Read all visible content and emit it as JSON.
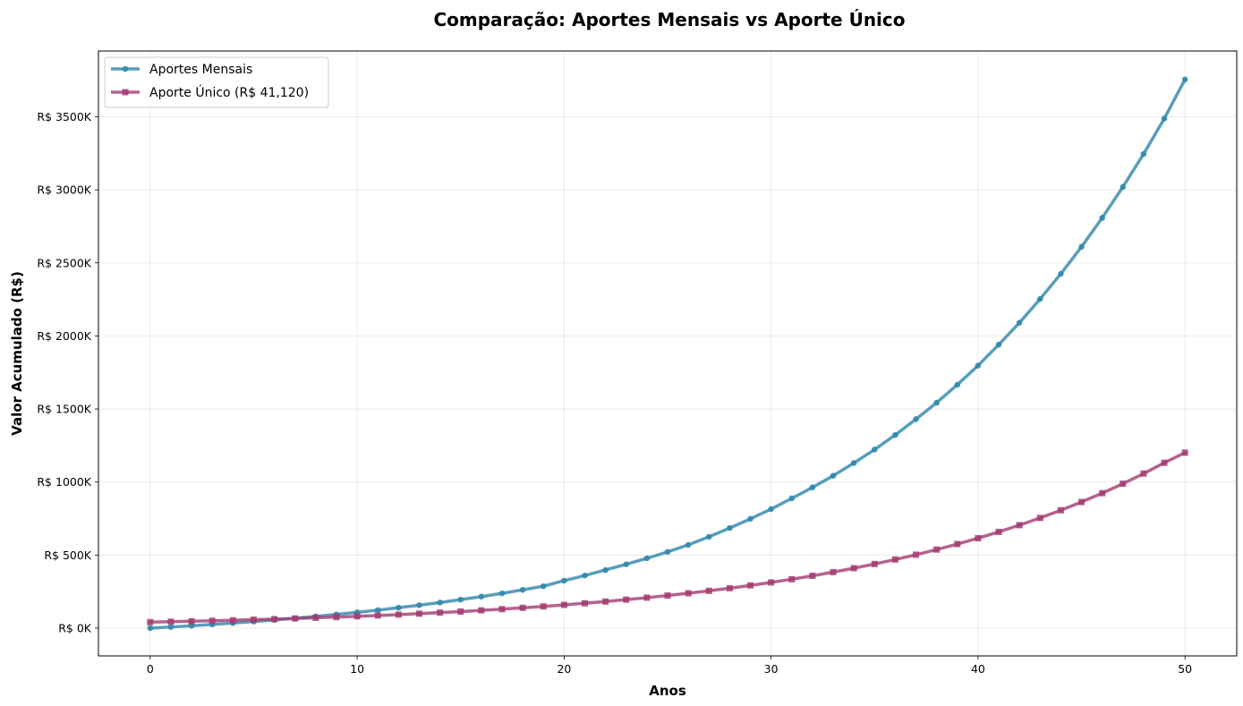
{
  "chart_data": {
    "type": "line",
    "title": "Comparação: Aportes Mensais vs Aporte Único",
    "xlabel": "Anos",
    "ylabel": "Valor Acumulado (R$)",
    "xlim": [
      -2.5,
      52.5
    ],
    "ylim": [
      -190,
      3950
    ],
    "x_ticks": [
      0,
      10,
      20,
      30,
      40,
      50
    ],
    "x_tick_labels": [
      "0",
      "10",
      "20",
      "30",
      "40",
      "50"
    ],
    "y_ticks": [
      0,
      500,
      1000,
      1500,
      2000,
      2500,
      3000,
      3500
    ],
    "y_tick_labels": [
      "R$ 0K",
      "R$ 500K",
      "R$ 1000K",
      "R$ 1500K",
      "R$ 2000K",
      "R$ 2500K",
      "R$ 3000K",
      "R$ 3500K"
    ],
    "y_unit": "R$ thousands",
    "grid": true,
    "legend_position": "top-left",
    "x": [
      0,
      1,
      2,
      3,
      4,
      5,
      6,
      7,
      8,
      9,
      10,
      11,
      12,
      13,
      14,
      15,
      16,
      17,
      18,
      19,
      20,
      21,
      22,
      23,
      24,
      25,
      26,
      27,
      28,
      29,
      30,
      31,
      32,
      33,
      34,
      35,
      36,
      37,
      38,
      39,
      40,
      41,
      42,
      43,
      44,
      45,
      46,
      47,
      48,
      49,
      50
    ],
    "series": [
      {
        "name": "Aportes Mensais",
        "color": "#2E86AB",
        "marker": "circle",
        "values": [
          0,
          7.9,
          16.3,
          25.3,
          34.9,
          45.1,
          56.1,
          67.9,
          80.4,
          93.8,
          108,
          123,
          140,
          157,
          175,
          195,
          216,
          238,
          262,
          287,
          325,
          360,
          398,
          437,
          478,
          522,
          570,
          625,
          685,
          748,
          815,
          888,
          963,
          1043,
          1130,
          1222,
          1322,
          1430,
          1543,
          1666,
          1797,
          1940,
          2090,
          2253,
          2425,
          2610,
          2808,
          3020,
          3245,
          3488,
          3755
        ]
      },
      {
        "name": "Aporte Único (R$ 41,120)",
        "color": "#A23B72",
        "marker": "square",
        "values": [
          41.1,
          44,
          47.1,
          50.4,
          53.9,
          57.7,
          61.7,
          66,
          70.7,
          75.6,
          80.9,
          86.6,
          92.6,
          99.1,
          106,
          113.5,
          121.4,
          129.9,
          139,
          148.7,
          159,
          170.2,
          182.1,
          194.9,
          208.5,
          223.1,
          238.7,
          255.4,
          273.3,
          292.5,
          312.9,
          334.8,
          358.3,
          383.4,
          410.2,
          438.9,
          469.6,
          502.5,
          537.7,
          575.3,
          615.6,
          658.7,
          704.8,
          754.1,
          806.9,
          863.4,
          923.8,
          988.5,
          1057.7,
          1131.7,
          1201
        ]
      }
    ]
  }
}
